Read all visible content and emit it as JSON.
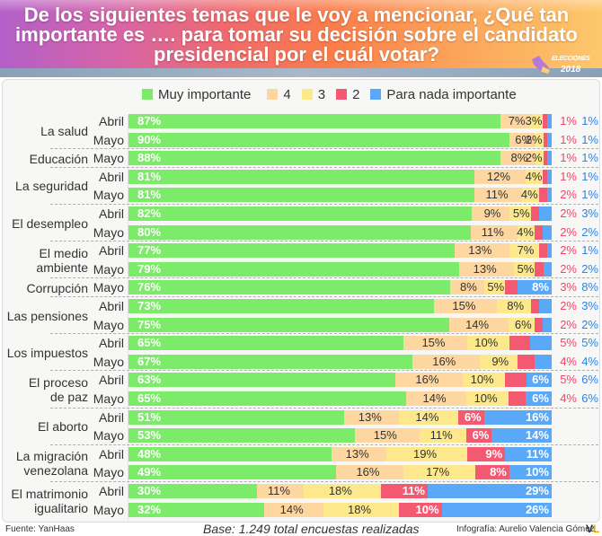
{
  "header": {
    "title_lines": [
      "De los siguientes temas que le voy a mencionar, ¿Qué tan",
      "importante es …. para tomar su decisión sobre el candidato",
      "presidencial por el cuál votar?"
    ],
    "logo_text": "ELECCIONES",
    "logo_year": "2018",
    "logo_icon": "ballot-hand-icon"
  },
  "colors": {
    "muy_importante": "#7deb6a",
    "4": "#fdd6a0",
    "3": "#fde88c",
    "2": "#f35a72",
    "para_nada": "#5aa8f8"
  },
  "chart_data": {
    "type": "bar",
    "orientation": "horizontal",
    "stacked": true,
    "title": "De los siguientes temas que le voy a mencionar, ¿Qué tan importante es …. para tomar su decisión sobre el candidato presidencial por el cuál votar?",
    "xlabel": "",
    "ylabel": "",
    "xlim": [
      0,
      100
    ],
    "unit": "%",
    "legend_position": "top",
    "legend": [
      "Muy importante",
      "4",
      "3",
      "2",
      "Para nada importante"
    ],
    "series_keys": [
      "muy_importante",
      "4",
      "3",
      "2",
      "para_nada"
    ],
    "groups": [
      {
        "topic": "La salud",
        "rows": [
          {
            "month": "Abril",
            "values": [
              87,
              7,
              3,
              1,
              1
            ]
          },
          {
            "month": "Mayo",
            "values": [
              90,
              6,
              2,
              1,
              1
            ]
          }
        ]
      },
      {
        "topic": "Educación",
        "rows": [
          {
            "month": "Mayo",
            "values": [
              88,
              8,
              2,
              1,
              1
            ]
          }
        ]
      },
      {
        "topic": "La seguridad",
        "rows": [
          {
            "month": "Abril",
            "values": [
              81,
              12,
              4,
              1,
              1
            ]
          },
          {
            "month": "Mayo",
            "values": [
              81,
              11,
              4,
              2,
              1
            ]
          }
        ]
      },
      {
        "topic": "El desempleo",
        "rows": [
          {
            "month": "Abril",
            "values": [
              82,
              9,
              5,
              2,
              3
            ]
          },
          {
            "month": "Mayo",
            "values": [
              80,
              11,
              4,
              2,
              2
            ]
          }
        ]
      },
      {
        "topic": "El medio\nambiente",
        "rows": [
          {
            "month": "Abril",
            "values": [
              77,
              13,
              7,
              2,
              1
            ]
          },
          {
            "month": "Mayo",
            "values": [
              79,
              13,
              5,
              2,
              2
            ]
          }
        ]
      },
      {
        "topic": "Corrupción",
        "rows": [
          {
            "month": "Mayo",
            "values": [
              76,
              8,
              5,
              3,
              8
            ]
          }
        ]
      },
      {
        "topic": "Las pensiones",
        "rows": [
          {
            "month": "Abril",
            "values": [
              73,
              15,
              8,
              2,
              3
            ]
          },
          {
            "month": "Mayo",
            "values": [
              75,
              14,
              6,
              2,
              2
            ]
          }
        ]
      },
      {
        "topic": "Los impuestos",
        "rows": [
          {
            "month": "Abril",
            "values": [
              65,
              15,
              10,
              5,
              5
            ]
          },
          {
            "month": "Mayo",
            "values": [
              67,
              16,
              9,
              4,
              4
            ]
          }
        ]
      },
      {
        "topic": "El proceso\nde paz",
        "rows": [
          {
            "month": "Abril",
            "values": [
              63,
              16,
              10,
              5,
              6
            ]
          },
          {
            "month": "Mayo",
            "values": [
              65,
              14,
              10,
              4,
              6
            ]
          }
        ]
      },
      {
        "topic": "El aborto",
        "rows": [
          {
            "month": "Abril",
            "values": [
              51,
              13,
              14,
              6,
              16
            ]
          },
          {
            "month": "Mayo",
            "values": [
              53,
              15,
              11,
              6,
              14
            ]
          }
        ]
      },
      {
        "topic": "La migración\nvenezolana",
        "rows": [
          {
            "month": "Abril",
            "values": [
              48,
              13,
              19,
              9,
              11
            ]
          },
          {
            "month": "Mayo",
            "values": [
              49,
              16,
              17,
              8,
              10
            ]
          }
        ]
      },
      {
        "topic": "El matrimonio\nigualitario",
        "rows": [
          {
            "month": "Abril",
            "values": [
              30,
              11,
              18,
              11,
              29
            ]
          },
          {
            "month": "Mayo",
            "values": [
              32,
              14,
              18,
              10,
              26
            ]
          }
        ]
      }
    ]
  },
  "footer": {
    "source": "Fuente: YanHaas",
    "base": "Base: 1.249 total encuestas realizadas",
    "credit": "Infografía: Aurelio Valencia Gómez",
    "credit_logo": "VL"
  }
}
